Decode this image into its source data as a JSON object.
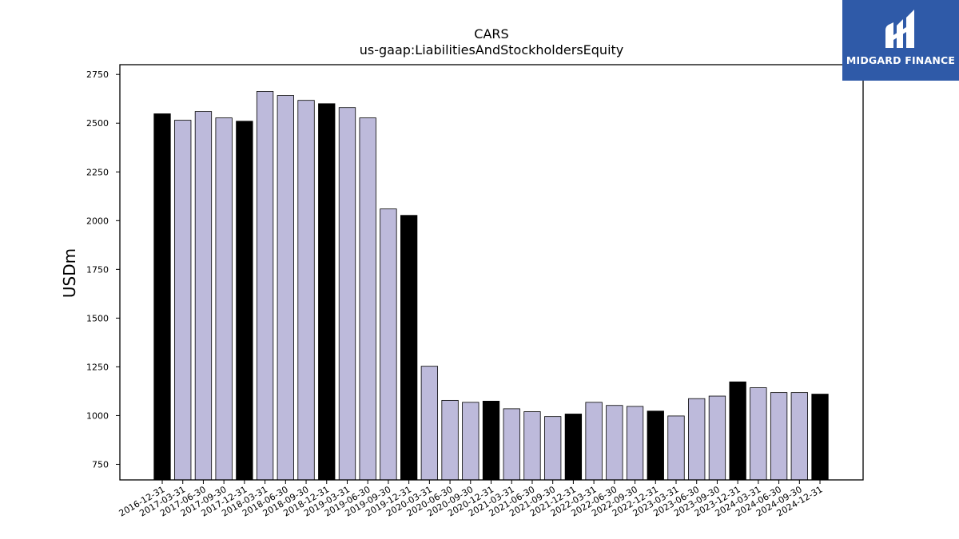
{
  "brand": {
    "name": "MIDGARD FINANCE",
    "color": "#2f5aa8"
  },
  "chart_data": {
    "type": "bar",
    "title": "CARS",
    "subtitle": "us-gaap:LiabilitiesAndStockholdersEquity",
    "xlabel": "",
    "ylabel": "USDm",
    "ylim": [
      670,
      2800
    ],
    "yticks": [
      750,
      1000,
      1250,
      1500,
      1750,
      2000,
      2250,
      2500,
      2750
    ],
    "grid": false,
    "colors": {
      "annual": "#000000",
      "quarterly": "#bdbadb"
    },
    "categories": [
      "2016-12-31",
      "2017-03-31",
      "2017-06-30",
      "2017-09-30",
      "2017-12-31",
      "2018-03-31",
      "2018-06-30",
      "2018-09-30",
      "2018-12-31",
      "2019-03-31",
      "2019-06-30",
      "2019-09-30",
      "2019-12-31",
      "2020-03-31",
      "2020-06-30",
      "2020-09-30",
      "2020-12-31",
      "2021-03-31",
      "2021-06-30",
      "2021-09-30",
      "2021-12-31",
      "2022-03-31",
      "2022-06-30",
      "2022-09-30",
      "2022-12-31",
      "2023-03-31",
      "2023-06-30",
      "2023-09-30",
      "2023-12-31",
      "2024-03-31",
      "2024-06-30",
      "2024-09-30",
      "2024-12-31"
    ],
    "values": [
      2548,
      2515,
      2560,
      2527,
      2510,
      2663,
      2642,
      2617,
      2600,
      2580,
      2527,
      2060,
      2027,
      1253,
      1078,
      1068,
      1074,
      1035,
      1020,
      995,
      1008,
      1068,
      1052,
      1047,
      1023,
      998,
      1087,
      1100,
      1173,
      1143,
      1118,
      1118,
      1110
    ]
  }
}
